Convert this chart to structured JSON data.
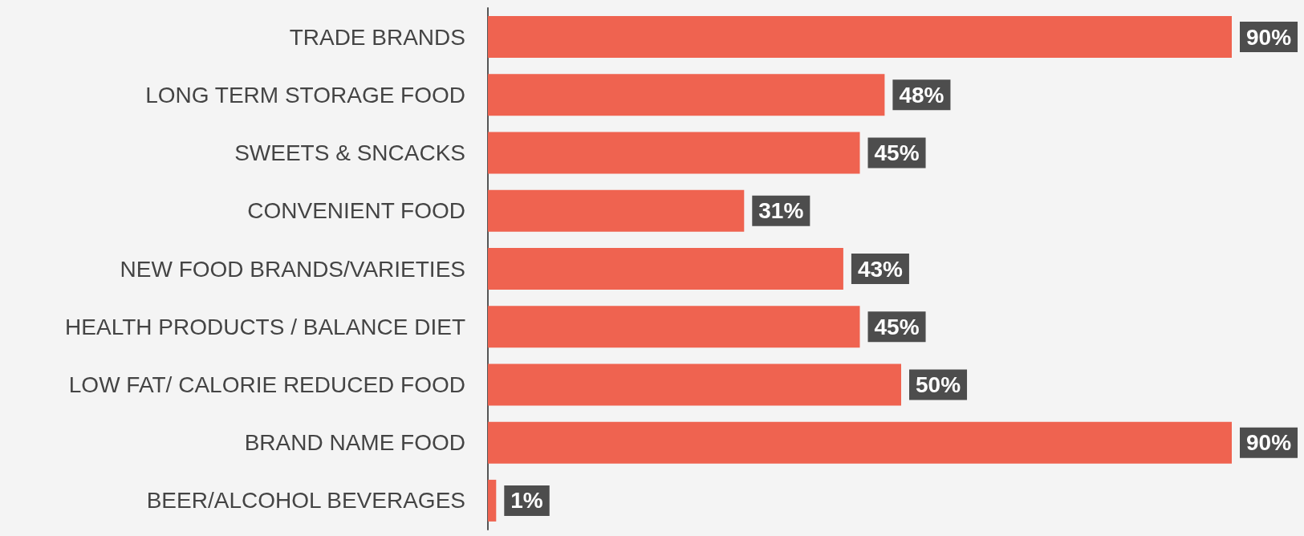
{
  "chart_data": {
    "type": "bar",
    "orientation": "horizontal",
    "color": "#ef6350",
    "categories": [
      "TRADE BRANDS",
      "LONG TERM STORAGE FOOD",
      "SWEETS & SNCACKS",
      "CONVENIENT FOOD",
      "NEW FOOD BRANDS/VARIETIES",
      "HEALTH PRODUCTS / BALANCE DIET",
      "LOW FAT/ CALORIE REDUCED FOOD",
      "BRAND NAME FOOD",
      "BEER/ALCOHOL BEVERAGES"
    ],
    "values": [
      90,
      48,
      45,
      31,
      43,
      45,
      50,
      90,
      1
    ],
    "value_labels": [
      "90%",
      "48%",
      "45%",
      "31%",
      "43%",
      "45%",
      "50%",
      "90%",
      "1%"
    ],
    "grid": false
  }
}
